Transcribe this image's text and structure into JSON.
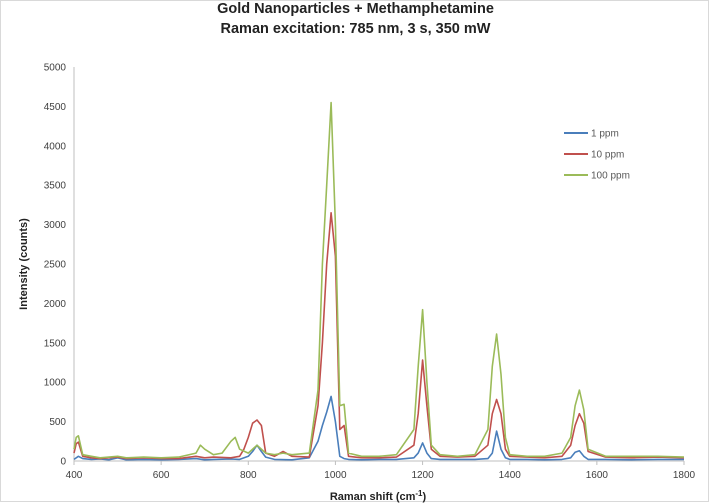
{
  "chart_data": {
    "type": "line",
    "title": "Gold Nanoparticles + Methamphetamine",
    "subtitle": "Raman excitation: 785 nm, 3 s, 350 mW",
    "xlabel": "Raman shift (cm",
    "xlabel_superscript": "-1",
    "xlabel_suffix": ")",
    "ylabel": "Intensity (counts)",
    "xlim": [
      400,
      1800
    ],
    "ylim": [
      0,
      5000
    ],
    "x_ticks": [
      400,
      600,
      800,
      1000,
      1200,
      1400,
      1600,
      1800
    ],
    "y_ticks": [
      0,
      500,
      1000,
      1500,
      2000,
      2500,
      3000,
      3500,
      4000,
      4500,
      5000
    ],
    "grid": false,
    "legend_position": "top-right",
    "series": [
      {
        "name": "1 ppm",
        "color": "#4a7ebb",
        "x": [
          400,
          410,
          420,
          440,
          460,
          480,
          500,
          520,
          560,
          600,
          640,
          680,
          700,
          720,
          760,
          780,
          800,
          810,
          820,
          830,
          840,
          860,
          900,
          940,
          960,
          970,
          980,
          990,
          1000,
          1010,
          1020,
          1030,
          1060,
          1100,
          1140,
          1180,
          1190,
          1200,
          1210,
          1220,
          1240,
          1280,
          1320,
          1350,
          1360,
          1370,
          1380,
          1390,
          1400,
          1440,
          1480,
          1520,
          1540,
          1550,
          1560,
          1570,
          1580,
          1620,
          1680,
          1740,
          1800
        ],
        "values": [
          20,
          60,
          30,
          20,
          25,
          15,
          40,
          15,
          20,
          15,
          20,
          30,
          15,
          20,
          25,
          20,
          60,
          120,
          200,
          120,
          50,
          20,
          15,
          40,
          250,
          450,
          620,
          820,
          500,
          60,
          30,
          20,
          15,
          20,
          20,
          40,
          100,
          230,
          100,
          30,
          20,
          20,
          20,
          30,
          100,
          380,
          150,
          40,
          20,
          20,
          15,
          20,
          40,
          110,
          130,
          60,
          20,
          20,
          15,
          20,
          20
        ]
      },
      {
        "name": "10 ppm",
        "color": "#c0504d",
        "x": [
          400,
          405,
          410,
          420,
          440,
          460,
          480,
          500,
          520,
          560,
          600,
          640,
          680,
          700,
          720,
          760,
          780,
          790,
          800,
          810,
          820,
          830,
          840,
          860,
          880,
          900,
          940,
          960,
          970,
          980,
          990,
          1000,
          1010,
          1020,
          1030,
          1060,
          1100,
          1140,
          1180,
          1190,
          1200,
          1210,
          1220,
          1240,
          1280,
          1320,
          1350,
          1360,
          1370,
          1380,
          1390,
          1400,
          1440,
          1480,
          1520,
          1540,
          1550,
          1560,
          1570,
          1580,
          1620,
          1680,
          1740,
          1800
        ],
        "values": [
          100,
          220,
          240,
          60,
          40,
          30,
          40,
          50,
          30,
          40,
          30,
          30,
          60,
          40,
          50,
          40,
          60,
          150,
          300,
          480,
          520,
          450,
          100,
          60,
          120,
          60,
          50,
          700,
          1500,
          2500,
          3150,
          2600,
          400,
          450,
          60,
          40,
          40,
          50,
          200,
          600,
          1280,
          700,
          150,
          60,
          50,
          60,
          200,
          600,
          780,
          600,
          150,
          60,
          50,
          40,
          60,
          200,
          450,
          600,
          480,
          120,
          50,
          40,
          50,
          40
        ]
      },
      {
        "name": "100 ppm",
        "color": "#9bbb59",
        "x": [
          400,
          405,
          410,
          420,
          440,
          460,
          480,
          500,
          520,
          560,
          600,
          640,
          680,
          690,
          700,
          720,
          740,
          760,
          770,
          780,
          800,
          820,
          840,
          860,
          880,
          900,
          940,
          960,
          970,
          980,
          990,
          1000,
          1010,
          1020,
          1030,
          1060,
          1100,
          1140,
          1180,
          1190,
          1200,
          1210,
          1220,
          1240,
          1280,
          1320,
          1350,
          1360,
          1370,
          1380,
          1390,
          1400,
          1440,
          1480,
          1520,
          1540,
          1550,
          1560,
          1570,
          1580,
          1620,
          1680,
          1740,
          1800
        ],
        "values": [
          150,
          300,
          320,
          80,
          60,
          40,
          50,
          60,
          40,
          50,
          40,
          50,
          100,
          200,
          150,
          80,
          100,
          250,
          300,
          150,
          100,
          200,
          100,
          80,
          100,
          80,
          100,
          900,
          2500,
          3500,
          4550,
          3000,
          700,
          720,
          100,
          60,
          60,
          80,
          400,
          1200,
          1920,
          1000,
          200,
          80,
          60,
          80,
          400,
          1200,
          1610,
          1100,
          300,
          80,
          60,
          60,
          100,
          300,
          700,
          900,
          650,
          150,
          60,
          60,
          60,
          50
        ]
      }
    ]
  }
}
